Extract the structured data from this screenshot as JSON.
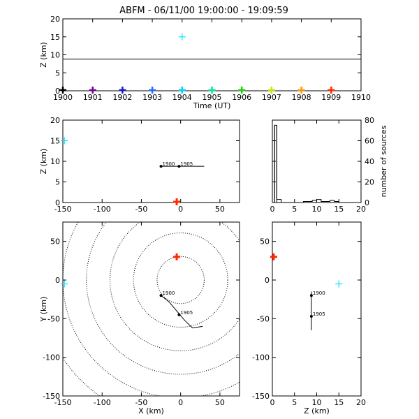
{
  "title": "ABFM - 06/11/00 19:00:00 - 19:09:59",
  "colors": {
    "axes": "#000000",
    "cyan_marker": "#00e5ff",
    "red_marker": "#ff2a00"
  },
  "chart_data": [
    {
      "type": "scatter",
      "id": "time_height",
      "xlabel": "Time (UT)",
      "ylabel": "Z (km)",
      "xlim": [
        1900,
        1910
      ],
      "ylim": [
        0,
        20
      ],
      "xticks": [
        "1900",
        "1901",
        "1902",
        "1903",
        "1904",
        "1905",
        "1906",
        "1907",
        "1908",
        "1909",
        "1910"
      ],
      "yticks": [
        "0",
        "5",
        "10",
        "15",
        "20"
      ],
      "hline_y": 8.8,
      "cyan_point": {
        "x": 1904,
        "y": 15
      },
      "time_markers": [
        {
          "x": 1900,
          "color": "#000000"
        },
        {
          "x": 1901,
          "color": "#7a0099"
        },
        {
          "x": 1902,
          "color": "#1a1acc"
        },
        {
          "x": 1903,
          "color": "#2a6bff"
        },
        {
          "x": 1904,
          "color": "#00d2ff"
        },
        {
          "x": 1905,
          "color": "#00e6a0"
        },
        {
          "x": 1906,
          "color": "#19d400"
        },
        {
          "x": 1907,
          "color": "#c8e600"
        },
        {
          "x": 1908,
          "color": "#ff9900"
        },
        {
          "x": 1909,
          "color": "#ff2a00"
        }
      ]
    },
    {
      "type": "line",
      "id": "x_z",
      "xlabel": "",
      "ylabel": "Z (km)",
      "xlim": [
        -150,
        75
      ],
      "ylim": [
        0,
        20
      ],
      "xticks": [
        "-150",
        "-100",
        "-50",
        "0",
        "50"
      ],
      "yticks": [
        "0",
        "5",
        "10",
        "15",
        "20"
      ],
      "track": [
        [
          -25,
          8.8
        ],
        [
          30,
          8.8
        ]
      ],
      "labeled_points": [
        {
          "label": "1900",
          "x": -25,
          "y": 8.8
        },
        {
          "label": "1905",
          "x": -2,
          "y": 8.8
        }
      ],
      "cyan_point": {
        "x": -148,
        "y": 15
      },
      "red_point": {
        "x": -5,
        "y": 0
      }
    },
    {
      "type": "bar",
      "id": "histogram",
      "ylabel": "number of sources",
      "xlim": [
        0,
        20
      ],
      "ylim": [
        0,
        80
      ],
      "xticks": [
        "0",
        "5",
        "10",
        "15",
        "20"
      ],
      "yticks": [
        "0",
        "20",
        "40",
        "60",
        "80"
      ],
      "bins": [
        [
          0,
          0.5,
          0
        ],
        [
          0.5,
          1,
          75
        ],
        [
          1,
          2,
          3
        ],
        [
          2,
          7,
          0
        ],
        [
          7,
          8,
          1
        ],
        [
          8,
          9,
          1
        ],
        [
          9,
          10,
          2
        ],
        [
          10,
          11,
          3
        ],
        [
          11,
          12,
          1
        ],
        [
          12,
          13,
          1
        ],
        [
          13,
          14,
          2
        ],
        [
          14,
          15,
          1
        ],
        [
          15,
          20,
          0
        ]
      ]
    },
    {
      "type": "line",
      "id": "x_y",
      "xlabel": "X (km)",
      "ylabel": "Y (km)",
      "xlim": [
        -150,
        75
      ],
      "ylim": [
        -150,
        75
      ],
      "xticks": [
        "-150",
        "-100",
        "-50",
        "0",
        "50"
      ],
      "yticks": [
        "-150",
        "-100",
        "-50",
        "0",
        "50"
      ],
      "range_rings": {
        "center": [
          0,
          0
        ],
        "radii": [
          30,
          60,
          90,
          120,
          150,
          180
        ]
      },
      "track": [
        [
          -25,
          -20
        ],
        [
          -15,
          -28
        ],
        [
          -5,
          -40
        ],
        [
          5,
          -52
        ],
        [
          15,
          -62
        ],
        [
          28,
          -60
        ]
      ],
      "labeled_points": [
        {
          "label": "1900",
          "x": -25,
          "y": -20
        },
        {
          "label": "1905",
          "x": -2,
          "y": -45
        }
      ],
      "cyan_point": {
        "x": -148,
        "y": -5
      },
      "red_point": {
        "x": -5,
        "y": 30
      }
    },
    {
      "type": "line",
      "id": "z_y",
      "xlabel": "Z (km)",
      "ylabel": "",
      "xlim": [
        0,
        20
      ],
      "ylim": [
        -150,
        75
      ],
      "xticks": [
        "0",
        "5",
        "10",
        "15",
        "20"
      ],
      "yticks": [
        "-150",
        "-100",
        "-50",
        "0",
        "50"
      ],
      "track": [
        [
          8.8,
          -15
        ],
        [
          8.8,
          -65
        ]
      ],
      "labeled_points": [
        {
          "label": "1900",
          "x": 8.8,
          "y": -20
        },
        {
          "label": "1905",
          "x": 8.8,
          "y": -47
        }
      ],
      "cyan_point": {
        "x": 15,
        "y": -5
      },
      "red_point": {
        "x": 0.3,
        "y": 30
      }
    }
  ]
}
